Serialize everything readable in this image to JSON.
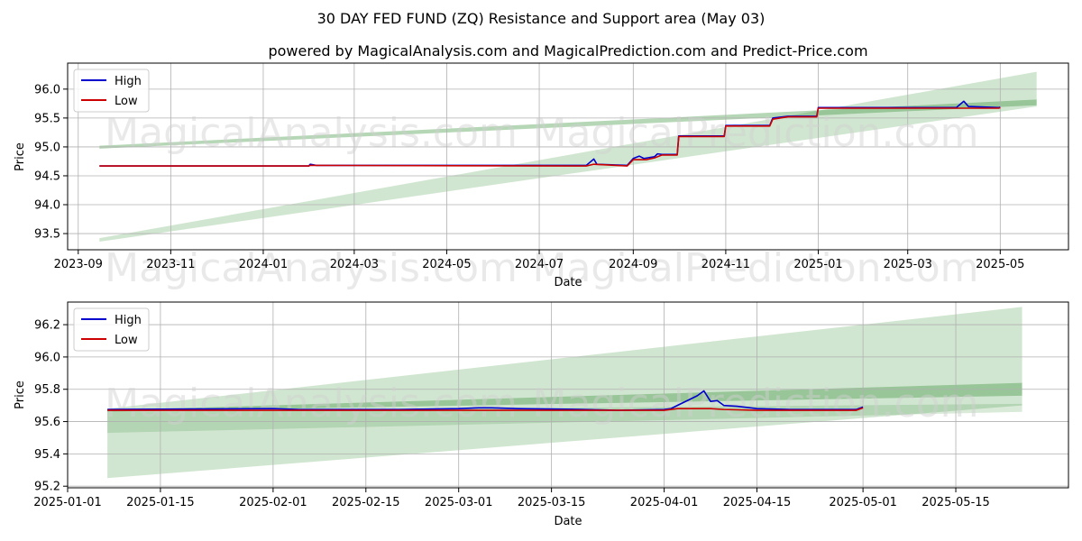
{
  "suptitle": "30 DAY FED FUND (ZQ) Resistance and Support area (May 03)",
  "subtitle": "powered by MagicalAnalysis.com and MagicalPrediction.com and Predict-Price.com",
  "watermarks": [
    "MagicalAnalysis.com",
    "MagicalPrediction.com"
  ],
  "colors": {
    "high": "#0000cc",
    "low": "#cc0000",
    "band": "#2e8b2e",
    "grid": "#b0b0b0"
  },
  "chart_data": [
    {
      "type": "line",
      "name": "top",
      "xlabel": "Date",
      "ylabel": "Price",
      "xlim": [
        "2023-08-25",
        "2025-06-15"
      ],
      "ylim": [
        93.22,
        96.45
      ],
      "x_ticks": [
        "2023-09",
        "2023-11",
        "2024-01",
        "2024-03",
        "2024-05",
        "2024-07",
        "2024-09",
        "2024-11",
        "2025-01",
        "2025-03",
        "2025-05"
      ],
      "y_ticks": [
        "93.5",
        "94.0",
        "94.5",
        "95.0",
        "95.5",
        "96.0"
      ],
      "legend": {
        "position": "top-left",
        "entries": [
          "High",
          "Low"
        ]
      },
      "grid": true,
      "bands": [
        {
          "x": [
            "2023-09-15",
            "2025-05-25"
          ],
          "upper": [
            95.02,
            95.82
          ],
          "lower": [
            94.97,
            95.72
          ],
          "opacity": 0.35
        },
        {
          "x": [
            "2023-09-15",
            "2025-05-25"
          ],
          "upper": [
            93.42,
            96.3
          ],
          "lower": [
            93.36,
            95.7
          ],
          "opacity": 0.22
        }
      ],
      "series": [
        {
          "name": "High",
          "x": [
            "2023-09-15",
            "2024-01-31",
            "2024-02-01",
            "2024-02-05",
            "2024-08-01",
            "2024-08-06",
            "2024-08-08",
            "2024-08-28",
            "2024-09-01",
            "2024-09-05",
            "2024-09-08",
            "2024-09-15",
            "2024-09-17",
            "2024-09-20",
            "2024-09-30",
            "2024-10-01",
            "2024-10-31",
            "2024-11-01",
            "2024-11-30",
            "2024-12-02",
            "2024-12-12",
            "2024-12-31",
            "2025-01-01",
            "2025-04-02",
            "2025-04-07",
            "2025-04-10",
            "2025-04-30",
            "2025-05-01"
          ],
          "values": [
            94.67,
            94.67,
            94.7,
            94.68,
            94.68,
            94.79,
            94.7,
            94.68,
            94.8,
            94.84,
            94.8,
            94.83,
            94.88,
            94.87,
            94.87,
            95.19,
            95.19,
            95.37,
            95.37,
            95.5,
            95.53,
            95.53,
            95.68,
            95.68,
            95.79,
            95.7,
            95.68,
            95.69
          ]
        },
        {
          "name": "Low",
          "x": [
            "2023-09-15",
            "2024-01-31",
            "2024-02-01",
            "2024-08-01",
            "2024-08-06",
            "2024-08-28",
            "2024-09-01",
            "2024-09-10",
            "2024-09-15",
            "2024-09-20",
            "2024-09-30",
            "2024-10-01",
            "2024-10-31",
            "2024-11-01",
            "2024-11-30",
            "2024-12-02",
            "2024-12-12",
            "2024-12-31",
            "2025-01-01",
            "2025-04-30",
            "2025-05-01"
          ],
          "values": [
            94.67,
            94.67,
            94.68,
            94.67,
            94.7,
            94.67,
            94.78,
            94.78,
            94.81,
            94.86,
            94.86,
            95.18,
            95.18,
            95.36,
            95.36,
            95.48,
            95.52,
            95.52,
            95.67,
            95.67,
            95.68
          ]
        }
      ]
    },
    {
      "type": "line",
      "name": "bottom",
      "xlabel": "Date",
      "ylabel": "Price",
      "xlim": [
        "2025-01-01",
        "2025-06-01"
      ],
      "ylim": [
        95.19,
        96.34
      ],
      "x_ticks": [
        "2025-01-01",
        "2025-01-15",
        "2025-02-01",
        "2025-02-15",
        "2025-03-01",
        "2025-03-15",
        "2025-04-01",
        "2025-04-15",
        "2025-05-01",
        "2025-05-15"
      ],
      "y_ticks": [
        "95.2",
        "95.4",
        "95.6",
        "95.8",
        "96.0",
        "96.2"
      ],
      "legend": {
        "position": "top-left",
        "entries": [
          "High",
          "Low"
        ]
      },
      "grid": true,
      "bands": [
        {
          "x": [
            "2025-01-07",
            "2025-05-25"
          ],
          "upper": [
            95.67,
            95.84
          ],
          "lower": [
            95.66,
            95.76
          ],
          "opacity": 0.35
        },
        {
          "x": [
            "2025-01-07",
            "2025-05-25"
          ],
          "upper": [
            95.68,
            96.31
          ],
          "lower": [
            95.25,
            95.7
          ],
          "opacity": 0.22
        },
        {
          "x": [
            "2025-01-07",
            "2025-05-25"
          ],
          "upper": [
            95.66,
            95.71
          ],
          "lower": [
            95.53,
            95.66
          ],
          "opacity": 0.18
        }
      ],
      "series": [
        {
          "name": "High",
          "x": [
            "2025-01-07",
            "2025-02-01",
            "2025-02-05",
            "2025-02-20",
            "2025-03-01",
            "2025-03-04",
            "2025-03-06",
            "2025-03-10",
            "2025-03-20",
            "2025-03-25",
            "2025-04-01",
            "2025-04-02",
            "2025-04-03",
            "2025-04-06",
            "2025-04-07",
            "2025-04-08",
            "2025-04-09",
            "2025-04-10",
            "2025-04-12",
            "2025-04-15",
            "2025-04-20",
            "2025-04-25",
            "2025-04-30",
            "2025-05-01"
          ],
          "values": [
            95.675,
            95.68,
            95.675,
            95.675,
            95.68,
            95.685,
            95.685,
            95.68,
            95.675,
            95.67,
            95.675,
            95.68,
            95.7,
            95.76,
            95.79,
            95.725,
            95.73,
            95.7,
            95.695,
            95.68,
            95.675,
            95.675,
            95.675,
            95.69
          ]
        },
        {
          "name": "Low",
          "x": [
            "2025-01-07",
            "2025-02-01",
            "2025-03-01",
            "2025-03-20",
            "2025-04-01",
            "2025-04-03",
            "2025-04-08",
            "2025-04-10",
            "2025-04-15",
            "2025-04-30",
            "2025-05-01"
          ],
          "values": [
            95.67,
            95.67,
            95.67,
            95.67,
            95.67,
            95.68,
            95.68,
            95.675,
            95.67,
            95.67,
            95.685
          ]
        }
      ]
    }
  ]
}
